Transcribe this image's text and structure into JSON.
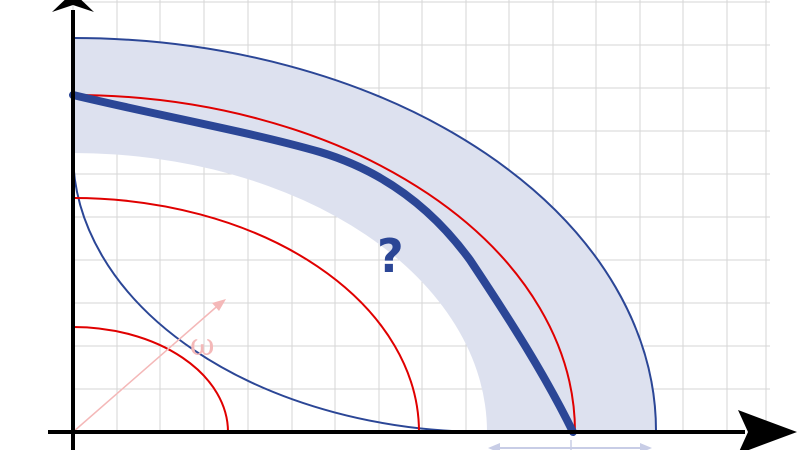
{
  "labels": {
    "omega": "ω",
    "question": "?"
  },
  "colors": {
    "background": "#ffffff",
    "grid": "#d6d6d6",
    "axis": "#000000",
    "band_fill": "#dde1ef",
    "band_stroke": "#2b4696",
    "red_arc": "#e00000",
    "estimate_curve": "#2b4696",
    "omega_arrow": "#f4b8b8",
    "width_indicator": "#c8cde6"
  },
  "icons": {
    "x_axis_head": "arrow-right-icon",
    "y_axis_head": "arrow-up-icon",
    "omega_arrow": "arrow-diagonal-icon",
    "width_indicator": "double-arrow-icon"
  }
}
